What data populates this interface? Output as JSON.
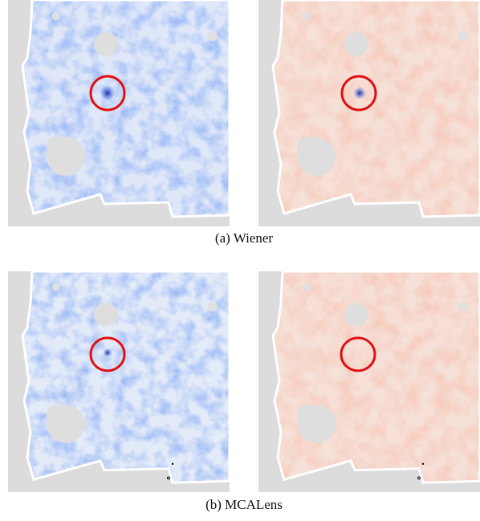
{
  "captions": [
    "(a) Wiener",
    "(b) MCALens"
  ]
}
